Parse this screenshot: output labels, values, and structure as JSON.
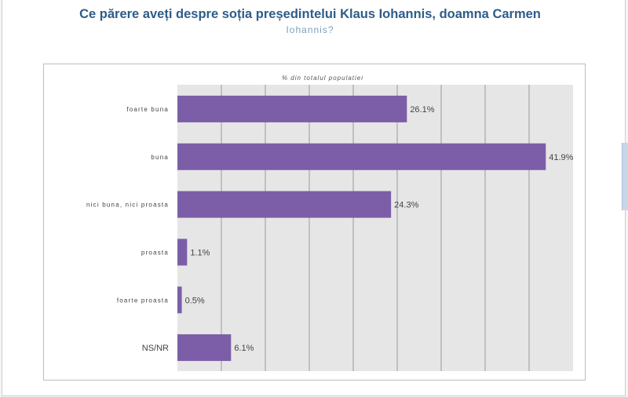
{
  "title": "Ce părere aveți despre soția președintelui Klaus Iohannis, doamna Carmen",
  "subtitle": "Iohannis?",
  "chart_data": {
    "type": "bar",
    "orientation": "horizontal",
    "title": "Ce părere aveți despre soția președintelui Klaus Iohannis, doamna Carmen Iohannis?",
    "axis_label": "% din totalul populatiei",
    "categories": [
      "foarte buna",
      "buna",
      "nici buna, nici proasta",
      "proasta",
      "foarte proasta",
      "NS/NR"
    ],
    "values": [
      26.1,
      41.9,
      24.3,
      1.1,
      0.5,
      6.1
    ],
    "value_labels": [
      "26.1%",
      "41.9%",
      "24.3%",
      "1.1%",
      "0.5%",
      "6.1%"
    ],
    "xlim": [
      0,
      45
    ],
    "grid": true,
    "bar_color": "#7b5ea7",
    "plot_background": "#e6e6e6"
  }
}
